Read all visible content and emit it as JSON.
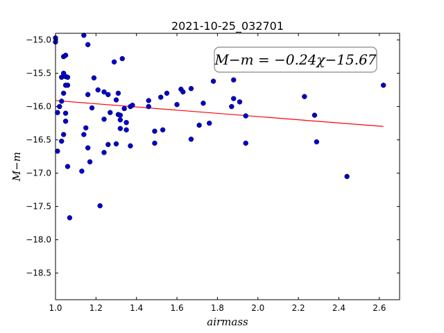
{
  "chart_data": {
    "type": "scatter",
    "title": "2021-10-25_032701",
    "xlabel": "airmass",
    "ylabel": "M−m",
    "xlim": [
      1.0,
      2.7
    ],
    "ylim": [
      -18.9,
      -14.9
    ],
    "y_inverted": true,
    "grid": false,
    "x_ticks": [
      1.0,
      1.2,
      1.4,
      1.6,
      1.8,
      2.0,
      2.2,
      2.4,
      2.6
    ],
    "x_tick_labels": [
      "1.0",
      "1.2",
      "1.4",
      "1.6",
      "1.8",
      "2.0",
      "2.2",
      "2.4",
      "2.6"
    ],
    "y_ticks": [
      -15.0,
      -15.5,
      -16.0,
      -16.5,
      -17.0,
      -17.5,
      -18.0,
      -18.5
    ],
    "y_tick_labels": [
      "−15.0",
      "−15.5",
      "−16.0",
      "−16.5",
      "−17.0",
      "−17.5",
      "−18.0",
      "−18.5"
    ],
    "annotation": "M−m = −0.24χ−15.67",
    "colors": {
      "points": "#0000cc",
      "fit": "#ff0000"
    },
    "fit": {
      "slope": -0.24,
      "intercept": -15.67,
      "x_start": 1.0,
      "x_end": 2.62
    },
    "points": [
      [
        1.0,
        -14.97
      ],
      [
        1.0,
        -15.03
      ],
      [
        1.03,
        -15.56
      ],
      [
        1.04,
        -15.25
      ],
      [
        1.05,
        -15.23
      ],
      [
        1.04,
        -15.5
      ],
      [
        1.05,
        -15.55
      ],
      [
        1.06,
        -15.56
      ],
      [
        1.05,
        -15.68
      ],
      [
        1.06,
        -15.68
      ],
      [
        1.04,
        -15.8
      ],
      [
        1.03,
        -15.92
      ],
      [
        1.02,
        -16.0
      ],
      [
        1.01,
        -16.09
      ],
      [
        1.05,
        -16.1
      ],
      [
        1.05,
        -16.22
      ],
      [
        1.04,
        -16.42
      ],
      [
        1.03,
        -16.52
      ],
      [
        1.01,
        -16.67
      ],
      [
        1.06,
        -16.9
      ],
      [
        1.07,
        -17.67
      ],
      [
        1.14,
        -14.93
      ],
      [
        1.16,
        -15.07
      ],
      [
        1.13,
        -16.97
      ],
      [
        1.14,
        -16.42
      ],
      [
        1.15,
        -16.32
      ],
      [
        1.16,
        -16.62
      ],
      [
        1.17,
        -16.83
      ],
      [
        1.18,
        -16.02
      ],
      [
        1.16,
        -15.82
      ],
      [
        1.19,
        -15.57
      ],
      [
        1.21,
        -15.75
      ],
      [
        1.24,
        -15.78
      ],
      [
        1.22,
        -17.49
      ],
      [
        1.24,
        -16.19
      ],
      [
        1.24,
        -16.69
      ],
      [
        1.26,
        -16.57
      ],
      [
        1.26,
        -15.82
      ],
      [
        1.27,
        -16.09
      ],
      [
        1.29,
        -15.33
      ],
      [
        1.3,
        -15.9
      ],
      [
        1.31,
        -15.8
      ],
      [
        1.31,
        -16.12
      ],
      [
        1.32,
        -16.13
      ],
      [
        1.32,
        -16.2
      ],
      [
        1.32,
        -16.33
      ],
      [
        1.3,
        -16.56
      ],
      [
        1.33,
        -15.28
      ],
      [
        1.34,
        -16.03
      ],
      [
        1.35,
        -16.24
      ],
      [
        1.35,
        -16.35
      ],
      [
        1.37,
        -16.59
      ],
      [
        1.37,
        -16.0
      ],
      [
        1.38,
        -15.98
      ],
      [
        1.46,
        -15.91
      ],
      [
        1.46,
        -16.0
      ],
      [
        1.49,
        -16.37
      ],
      [
        1.49,
        -16.55
      ],
      [
        1.52,
        -15.86
      ],
      [
        1.53,
        -16.35
      ],
      [
        1.55,
        -15.8
      ],
      [
        1.6,
        -15.97
      ],
      [
        1.62,
        -15.74
      ],
      [
        1.63,
        -15.78
      ],
      [
        1.67,
        -15.73
      ],
      [
        1.67,
        -16.49
      ],
      [
        1.71,
        -16.28
      ],
      [
        1.73,
        -15.95
      ],
      [
        1.76,
        -16.25
      ],
      [
        1.78,
        -15.62
      ],
      [
        1.87,
        -16.0
      ],
      [
        1.88,
        -15.6
      ],
      [
        1.88,
        -15.88
      ],
      [
        1.91,
        -15.93
      ],
      [
        1.94,
        -16.14
      ],
      [
        1.94,
        -16.55
      ],
      [
        2.23,
        -15.85
      ],
      [
        2.28,
        -16.13
      ],
      [
        2.29,
        -16.53
      ],
      [
        2.44,
        -17.05
      ],
      [
        2.62,
        -15.68
      ]
    ]
  }
}
